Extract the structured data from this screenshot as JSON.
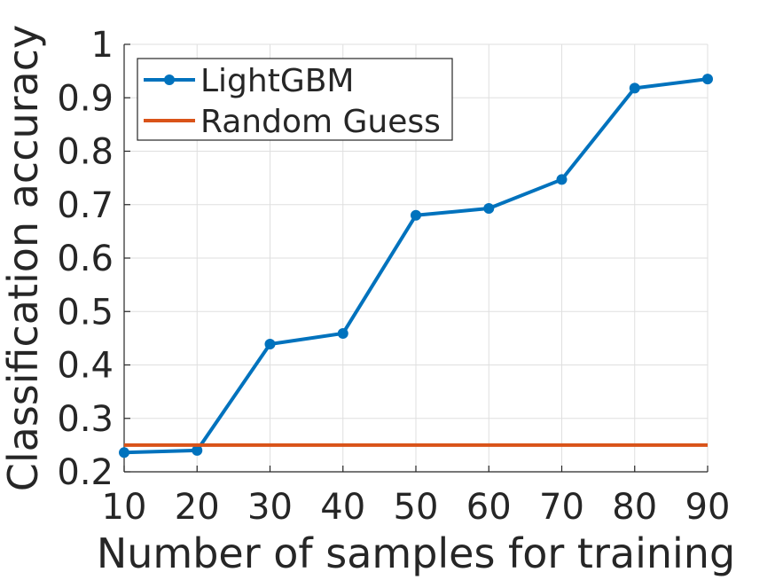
{
  "chart_data": {
    "type": "line",
    "title": "",
    "xlabel": "Number of samples for training",
    "ylabel": "Classification accuracy",
    "xlim": [
      10,
      90
    ],
    "ylim": [
      0.2,
      1
    ],
    "xticks": [
      "10",
      "20",
      "30",
      "40",
      "50",
      "60",
      "70",
      "80",
      "90"
    ],
    "yticks": [
      "0.2",
      "0.3",
      "0.4",
      "0.5",
      "0.6",
      "0.7",
      "0.8",
      "0.9",
      "1"
    ],
    "grid": true,
    "legend_position": "top-left",
    "series": [
      {
        "name": "LightGBM",
        "color": "#0072BD",
        "marker": "circle",
        "x": [
          10,
          20,
          30,
          40,
          50,
          60,
          70,
          80,
          90
        ],
        "y": [
          0.236,
          0.24,
          0.439,
          0.459,
          0.68,
          0.693,
          0.747,
          0.918,
          0.935
        ]
      },
      {
        "name": "Random Guess",
        "color": "#D95319",
        "marker": "none",
        "x": [
          10,
          90
        ],
        "y": [
          0.25,
          0.25
        ]
      }
    ]
  }
}
